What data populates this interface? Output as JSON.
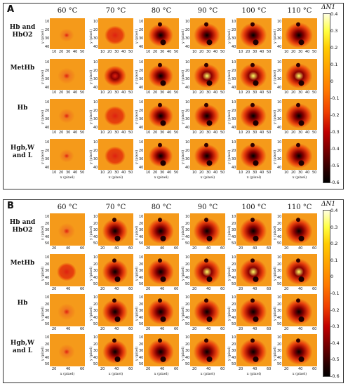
{
  "panels": [
    {
      "letter": "A",
      "temperatures": [
        "60 °C",
        "70 °C",
        "80 °C",
        "90 °C",
        "100 °C",
        "110 °C"
      ],
      "rows": [
        "Hb and HbO2",
        "MetHb",
        "Hb",
        "Hgb,W and L"
      ],
      "y_axis_label": "y (pixel)",
      "x_axis_label": "x (pixel)",
      "x_ticks": [
        "10",
        "20",
        "30",
        "40",
        "50"
      ],
      "y_ticks": [
        "10",
        "20",
        "30",
        "40"
      ],
      "colorbar_title": "ΔN1",
      "colorbar_ticks": [
        "0.4",
        "0.3",
        "0.2",
        "0.1",
        "0",
        "-0.1",
        "-0.2",
        "-0.3",
        "-0.4",
        "-0.5",
        "-0.6"
      ]
    },
    {
      "letter": "B",
      "temperatures": [
        "60 °C",
        "70 °C",
        "80 °C",
        "90 °C",
        "100 °C",
        "110 °C"
      ],
      "rows": [
        "Hb and HbO2",
        "MetHb",
        "Hb",
        "Hgb,W and L"
      ],
      "y_axis_label": "y (pixel)",
      "x_axis_label": "x (pixel)",
      "x_ticks": [
        "20",
        "40",
        "60"
      ],
      "y_ticks": [
        "10",
        "20",
        "30",
        "40",
        "50"
      ],
      "colorbar_title": "ΔN1",
      "colorbar_ticks": [
        "0.4",
        "0.3",
        "0.2",
        "0.1",
        "0",
        "-0.1",
        "-0.2",
        "-0.3",
        "-0.4",
        "-0.5",
        "-0.6"
      ]
    }
  ],
  "colors": {
    "background": "#f59a1a",
    "hot": "#ffff66",
    "cold": "#000000",
    "mid": "#e02010"
  }
}
